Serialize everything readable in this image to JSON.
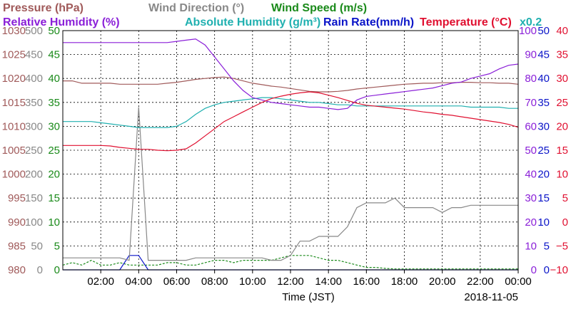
{
  "header": {
    "row1": [
      {
        "text": "Pressure (hPa)",
        "color": "#a05a5a"
      },
      {
        "text": "Wind Direction (°)",
        "color": "#888888"
      },
      {
        "text": "Wind Speed (m/s)",
        "color": "#1a8a1a"
      }
    ],
    "row2": [
      {
        "text": "Relative Humidity (%)",
        "color": "#8a1fd8"
      },
      {
        "text": "Absolute Humidity (g/m³)",
        "color": "#20b0b0"
      },
      {
        "text": "Rain Rate(mm/h)",
        "color": "#0a14c8"
      },
      {
        "text": "Temperature (°C)",
        "color": "#e01030"
      }
    ],
    "abs_humidity_scale": "x0.2"
  },
  "axes": {
    "pressure": {
      "ticks": [
        "1030",
        "1025",
        "1020",
        "1015",
        "1010",
        "1005",
        "1000",
        "995",
        "990",
        "985",
        "980"
      ],
      "color": "#a05a5a"
    },
    "wind_direction": {
      "ticks": [
        "500",
        "450",
        "400",
        "350",
        "300",
        "250",
        "200",
        "150",
        "100",
        "50",
        "0"
      ],
      "color": "#888888"
    },
    "wind_speed": {
      "ticks": [
        "50",
        "45",
        "40",
        "35",
        "30",
        "25",
        "20",
        "15",
        "10",
        "5",
        "0"
      ],
      "color": "#1a8a1a"
    },
    "humidity": {
      "ticks": [
        "100",
        "90",
        "80",
        "70",
        "60",
        "50",
        "40",
        "30",
        "20",
        "10",
        "0"
      ],
      "color": "#8a1fd8"
    },
    "rain": {
      "ticks": [
        "50",
        "45",
        "40",
        "35",
        "30",
        "25",
        "20",
        "15",
        "10",
        "5",
        "0"
      ],
      "color": "#0a14c8"
    },
    "temperature": {
      "ticks": [
        "40",
        "35",
        "30",
        "25",
        "20",
        "15",
        "10",
        "5",
        "0",
        "−5",
        "−10"
      ],
      "color": "#e01030"
    }
  },
  "x_ticks": [
    "02:00",
    "04:00",
    "06:00",
    "08:00",
    "10:00",
    "12:00",
    "14:00",
    "16:00",
    "18:00",
    "20:00",
    "22:00",
    "00:00"
  ],
  "xlabel": "Time (JST)",
  "date": "2018-11-05",
  "chart_data": {
    "type": "line",
    "x_hours": [
      0,
      0.5,
      1,
      1.5,
      2,
      2.5,
      3,
      3.5,
      4,
      4.5,
      5,
      5.5,
      6,
      6.5,
      7,
      7.5,
      8,
      8.5,
      9,
      9.5,
      10,
      10.5,
      11,
      11.5,
      12,
      12.5,
      13,
      13.5,
      14,
      14.5,
      15,
      15.5,
      16,
      16.5,
      17,
      17.5,
      18,
      18.5,
      19,
      19.5,
      20,
      20.5,
      21,
      21.5,
      22,
      22.5,
      23,
      23.5,
      24
    ],
    "series": [
      {
        "name": "Temperature (°C)",
        "unit": "°C",
        "color": "#e01030",
        "values": [
          16,
          16,
          16,
          16,
          16,
          15.9,
          15.6,
          15.4,
          15.2,
          15.2,
          15.0,
          14.9,
          15.0,
          15.3,
          16.5,
          18.0,
          19.5,
          21.0,
          22.0,
          23.0,
          24.0,
          25.0,
          25.8,
          26.3,
          26.7,
          27.0,
          27.2,
          27.0,
          26.5,
          26.0,
          25.4,
          24.8,
          24.4,
          24.2,
          24.0,
          23.8,
          23.6,
          23.3,
          23.0,
          22.8,
          22.5,
          22.3,
          22.0,
          21.7,
          21.4,
          21.1,
          20.8,
          20.4,
          19.8
        ]
      },
      {
        "name": "Relative Humidity (%)",
        "unit": "%",
        "color": "#8a1fd8",
        "values": [
          95,
          95,
          95,
          95,
          95,
          95,
          95,
          95,
          95,
          95,
          95,
          95,
          95.5,
          96,
          96.5,
          94,
          89,
          84,
          79,
          75,
          72,
          71,
          70,
          69.5,
          69,
          68.5,
          68,
          68,
          67.5,
          67,
          67.5,
          71,
          72.5,
          73,
          73.5,
          74,
          74.5,
          75,
          75.5,
          76,
          77,
          78,
          78.5,
          80,
          81,
          82,
          84,
          85.5,
          86
        ]
      },
      {
        "name": "Absolute Humidity (g/m³) x0.2",
        "unit": "g/m³",
        "color": "#20b0b0",
        "values": [
          62,
          62,
          62,
          62,
          61.5,
          61,
          60.5,
          60,
          59.5,
          59.5,
          59.5,
          59.5,
          60,
          62,
          65,
          67.5,
          69,
          70,
          70.5,
          71,
          71.5,
          72,
          72,
          71.5,
          71,
          70.5,
          70,
          70,
          69.5,
          69,
          69,
          68.5,
          68.5,
          68.5,
          68.5,
          68.5,
          68.5,
          68.5,
          68.5,
          68.5,
          68.5,
          68.5,
          68.5,
          68,
          68,
          68,
          68,
          67.5,
          67.5
        ]
      },
      {
        "name": "Pressure (hPa)",
        "unit": "hPa",
        "color": "#a05a5a",
        "values": [
          1019.5,
          1019.5,
          1019,
          1019,
          1019,
          1019,
          1018.8,
          1018.8,
          1018.8,
          1018.8,
          1018.8,
          1019,
          1019.2,
          1019.5,
          1019.8,
          1020,
          1020.2,
          1020.3,
          1020,
          1019.5,
          1019,
          1018.7,
          1018.4,
          1018.2,
          1017.9,
          1017.6,
          1017.3,
          1017.2,
          1017.2,
          1017.3,
          1017.5,
          1017.8,
          1018,
          1018.2,
          1018.4,
          1018.6,
          1018.8,
          1018.9,
          1019,
          1019,
          1019.1,
          1019.1,
          1019.2,
          1019.2,
          1019.1,
          1019.1,
          1019,
          1019,
          1018.8
        ]
      },
      {
        "name": "Wind Direction (°)",
        "unit": "°",
        "color": "#888888",
        "values": [
          25,
          25,
          25,
          25,
          25,
          25,
          25,
          20,
          340,
          20,
          20,
          20,
          20,
          20,
          25,
          25,
          25,
          25,
          25,
          25,
          25,
          25,
          20,
          20,
          30,
          60,
          60,
          70,
          70,
          70,
          90,
          130,
          140,
          140,
          140,
          150,
          130,
          130,
          130,
          130,
          120,
          130,
          130,
          135,
          135,
          135,
          135,
          135,
          135
        ]
      },
      {
        "name": "Wind Speed (m/s)",
        "unit": "m/s",
        "color": "#1a8a1a",
        "values": [
          1,
          1.5,
          1,
          2,
          1,
          1,
          1.5,
          1,
          1,
          1,
          1,
          1.5,
          1.5,
          1,
          1,
          1.5,
          2,
          2,
          1.5,
          2,
          2,
          2,
          2,
          2.5,
          3,
          3,
          3,
          2.5,
          2,
          2,
          1.5,
          1,
          0.5,
          0.5,
          0.3,
          0.2,
          0.2,
          0.2,
          0.2,
          0.2,
          0.2,
          0.2,
          0.2,
          0.2,
          0.2,
          0.2,
          0.2,
          0.2,
          0.2
        ]
      },
      {
        "name": "Rain Rate(mm/h)",
        "unit": "mm/h",
        "color": "#0a14c8",
        "values": [
          0,
          0,
          0,
          0,
          0,
          0,
          0,
          3,
          3,
          0,
          0,
          0,
          0,
          0,
          0,
          0,
          0,
          0,
          0,
          0,
          0,
          0,
          0,
          0,
          0,
          0,
          0,
          0,
          0,
          0,
          0,
          0,
          0,
          0,
          0,
          0,
          0,
          0,
          0,
          0,
          0,
          0,
          0,
          0,
          0,
          0,
          0,
          0,
          0
        ]
      }
    ],
    "xlabel": "Time (JST)",
    "xlim": [
      0,
      24
    ],
    "grid": true,
    "axis_ranges": {
      "pressure_hPa": [
        980,
        1030
      ],
      "wind_direction_deg": [
        0,
        500
      ],
      "wind_speed_ms": [
        0,
        50
      ],
      "relative_humidity_pct": [
        0,
        100
      ],
      "rain_rate_mmh": [
        0,
        50
      ],
      "temperature_c": [
        -10,
        40
      ]
    }
  }
}
